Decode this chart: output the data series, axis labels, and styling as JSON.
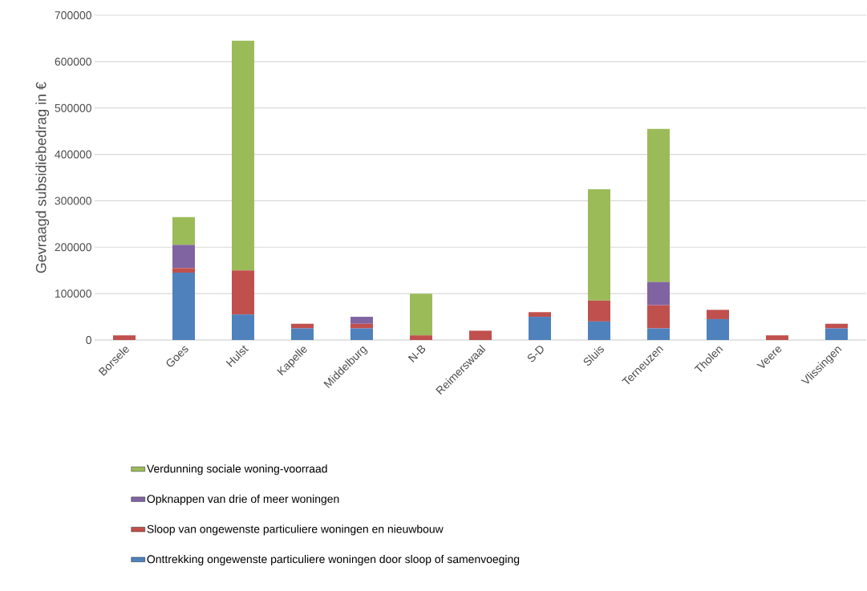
{
  "chart_data": {
    "type": "bar",
    "stacked": true,
    "ylabel": "Gevraagd subsidiebedrag in €",
    "categories": [
      "Borsele",
      "Goes",
      "Hulst",
      "Kapelle",
      "Middelburg",
      "N-B",
      "Reimerswaal",
      "S-D",
      "Sluis",
      "Terneuzen",
      "Tholen",
      "Veere",
      "Vlissingen"
    ],
    "series": [
      {
        "name": "Onttrekking ongewenste particuliere woningen door sloop of samenvoeging",
        "color": "#4f81bd",
        "values": [
          0,
          145000,
          55000,
          25000,
          25000,
          0,
          0,
          50000,
          40000,
          25000,
          45000,
          0,
          25000
        ]
      },
      {
        "name": "Sloop van ongewenste particuliere woningen en nieuwbouw",
        "color": "#c0504d",
        "values": [
          10000,
          10000,
          95000,
          10000,
          10000,
          10000,
          20000,
          10000,
          45000,
          50000,
          20000,
          10000,
          10000
        ]
      },
      {
        "name": "Opknappen van drie of meer woningen",
        "color": "#8064a2",
        "values": [
          0,
          50000,
          0,
          0,
          15000,
          0,
          0,
          0,
          0,
          50000,
          0,
          0,
          0
        ]
      },
      {
        "name": "Verdunning sociale woning-voorraad",
        "color": "#9bbb59",
        "values": [
          0,
          60000,
          495000,
          0,
          0,
          90000,
          0,
          0,
          240000,
          330000,
          0,
          0,
          0
        ]
      }
    ],
    "ylim": [
      0,
      700000
    ],
    "yticks": [
      0,
      100000,
      200000,
      300000,
      400000,
      500000,
      600000,
      700000
    ],
    "grid": "y",
    "legend": "bottom"
  }
}
